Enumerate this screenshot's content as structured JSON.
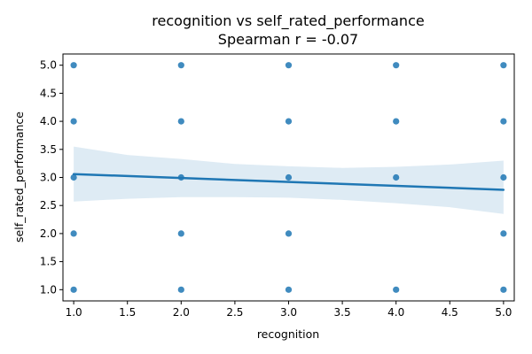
{
  "chart_data": {
    "type": "scatter",
    "title": "recognition vs self_rated_performance",
    "subtitle": "Spearman r = -0.07",
    "xlabel": "recognition",
    "ylabel": "self_rated_performance",
    "xlim": [
      0.9,
      5.1
    ],
    "ylim": [
      0.8,
      5.2
    ],
    "xticks": [
      "1.0",
      "1.5",
      "2.0",
      "2.5",
      "3.0",
      "3.5",
      "4.0",
      "4.5",
      "5.0"
    ],
    "yticks": [
      "1.0",
      "1.5",
      "2.0",
      "2.5",
      "3.0",
      "3.5",
      "4.0",
      "4.5",
      "5.0"
    ],
    "grid": false,
    "colors": {
      "points": "#1f77b4",
      "line": "#1f77b4",
      "ci_band": "#1f77b4"
    },
    "points": [
      {
        "x": 1,
        "y": 1
      },
      {
        "x": 1,
        "y": 2
      },
      {
        "x": 1,
        "y": 3
      },
      {
        "x": 1,
        "y": 4
      },
      {
        "x": 1,
        "y": 5
      },
      {
        "x": 2,
        "y": 1
      },
      {
        "x": 2,
        "y": 2
      },
      {
        "x": 2,
        "y": 3
      },
      {
        "x": 2,
        "y": 4
      },
      {
        "x": 2,
        "y": 5
      },
      {
        "x": 3,
        "y": 1
      },
      {
        "x": 3,
        "y": 2
      },
      {
        "x": 3,
        "y": 3
      },
      {
        "x": 3,
        "y": 4
      },
      {
        "x": 3,
        "y": 5
      },
      {
        "x": 4,
        "y": 1
      },
      {
        "x": 4,
        "y": 3
      },
      {
        "x": 4,
        "y": 4
      },
      {
        "x": 4,
        "y": 5
      },
      {
        "x": 5,
        "y": 1
      },
      {
        "x": 5,
        "y": 2
      },
      {
        "x": 5,
        "y": 3
      },
      {
        "x": 5,
        "y": 4
      },
      {
        "x": 5,
        "y": 5
      }
    ],
    "regression_line": {
      "x": [
        1,
        5
      ],
      "y": [
        3.06,
        2.78
      ]
    },
    "confidence_band": {
      "x": [
        1.0,
        1.5,
        2.0,
        2.5,
        3.0,
        3.5,
        4.0,
        4.5,
        5.0
      ],
      "upper": [
        3.55,
        3.4,
        3.33,
        3.24,
        3.2,
        3.17,
        3.19,
        3.23,
        3.3
      ],
      "lower": [
        2.57,
        2.62,
        2.65,
        2.65,
        2.64,
        2.6,
        2.54,
        2.47,
        2.35
      ]
    }
  }
}
